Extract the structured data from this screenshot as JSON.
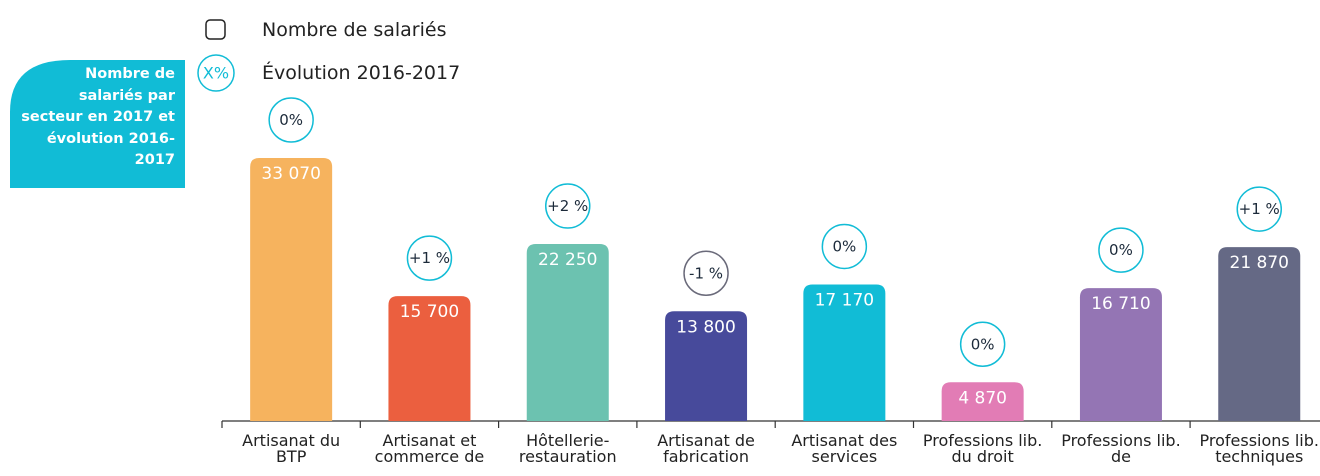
{
  "chart_data": {
    "type": "bar",
    "title": "Nombre de salariés par secteur en 2017 et évolution 2016-2017",
    "legend": {
      "bars": "Nombre de salariés",
      "evolution_icon": "X%",
      "evolution": "Évolution 2016-2017"
    },
    "categories": [
      "Artisanat du BTP",
      "Artisanat et commerce de",
      "Hôtellerie-restauration",
      "Artisanat de fabrication",
      "Artisanat des services",
      "Professions lib. du droit",
      "Professions lib. de",
      "Professions lib. techniques"
    ],
    "values": [
      33070,
      15700,
      22250,
      13800,
      17170,
      4870,
      16710,
      21870
    ],
    "value_labels": [
      "33 070",
      "15 700",
      "22 250",
      "13 800",
      "17 170",
      "4 870",
      "16 710",
      "21 870"
    ],
    "colors": [
      "#f6b35e",
      "#eb5f3f",
      "#6cc2b0",
      "#474a9b",
      "#11bcd6",
      "#e27cb5",
      "#9475b4",
      "#656985"
    ],
    "evolution": {
      "values": [
        0,
        1,
        2,
        -1,
        0,
        0,
        0,
        1
      ],
      "value_labels": [
        "0%",
        "+1 %",
        "+2 %",
        "-1 %",
        "0%",
        "0%",
        "0%",
        "+1 %"
      ],
      "color": "#11bcd6",
      "negative_color": "#6a6a7a"
    }
  }
}
